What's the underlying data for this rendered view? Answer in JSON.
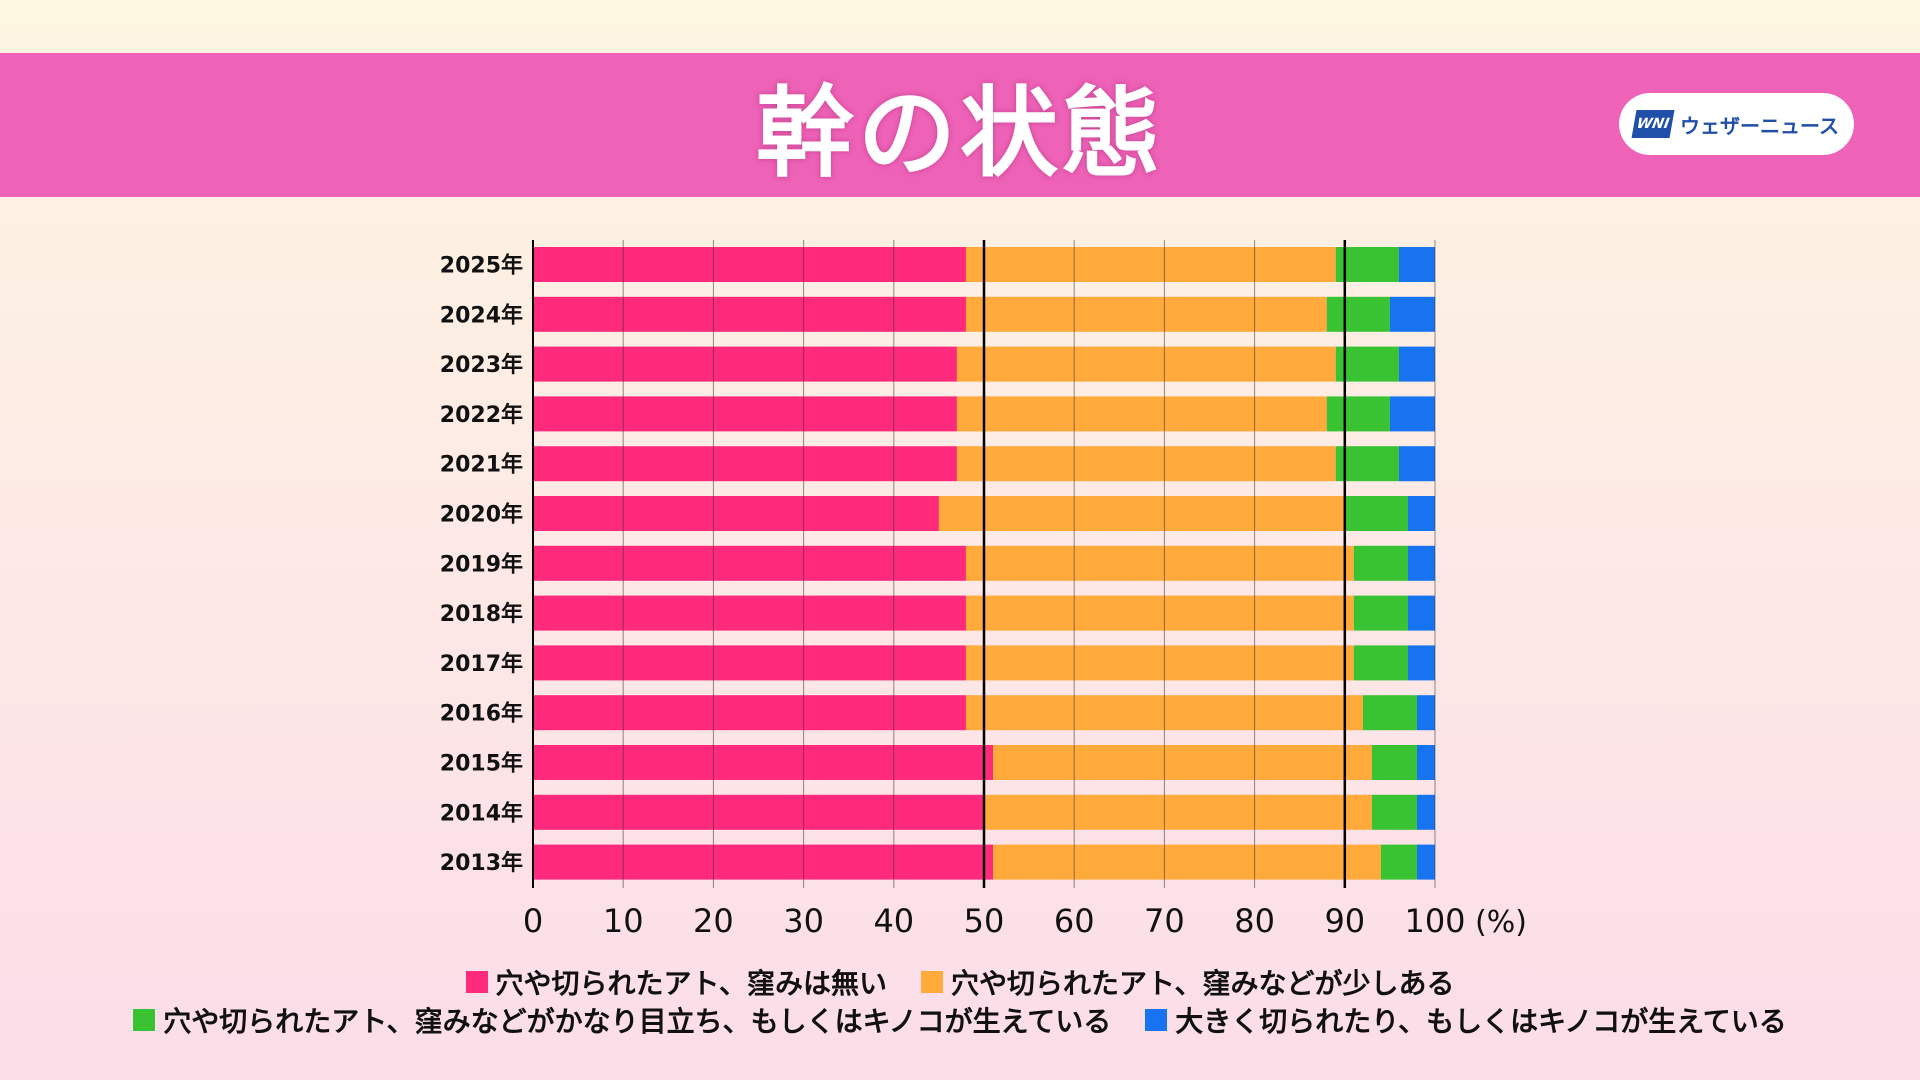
{
  "header": {
    "title": "幹の状態"
  },
  "brand": {
    "logo_text": "WNI",
    "name": "ウェザーニュース"
  },
  "chart_data": {
    "type": "bar",
    "orientation": "horizontal",
    "stacked": true,
    "title": "幹の状態",
    "xlabel": "(%)",
    "ylabel": "",
    "xlim": [
      0,
      100
    ],
    "xticks": [
      "0",
      "10",
      "20",
      "30",
      "40",
      "50",
      "60",
      "70",
      "80",
      "90",
      "100"
    ],
    "grid": true,
    "reference_lines": [
      50,
      90
    ],
    "legend_position": "bottom",
    "categories": [
      "2025年",
      "2024年",
      "2023年",
      "2022年",
      "2021年",
      "2020年",
      "2019年",
      "2018年",
      "2017年",
      "2016年",
      "2015年",
      "2014年",
      "2013年"
    ],
    "series": [
      {
        "name": "穴や切られたアト、窪みは無い",
        "color": "#ff2a7b",
        "values": [
          48,
          48,
          47,
          47,
          47,
          45,
          48,
          48,
          48,
          48,
          51,
          50,
          51
        ]
      },
      {
        "name": "穴や切られたアト、窪みなどが少しある",
        "color": "#ffaa3a",
        "values": [
          41,
          40,
          42,
          41,
          42,
          45,
          43,
          43,
          43,
          44,
          42,
          43,
          43
        ]
      },
      {
        "name": "穴や切られたアト、窪みなどがかなり目立ち、もしくはキノコが生えている",
        "color": "#39c232",
        "values": [
          7,
          7,
          7,
          7,
          7,
          7,
          6,
          6,
          6,
          6,
          5,
          5,
          4
        ]
      },
      {
        "name": "大きく切られたり、もしくはキノコが生えている",
        "color": "#1773f0",
        "values": [
          4,
          5,
          4,
          5,
          4,
          3,
          3,
          3,
          3,
          2,
          2,
          2,
          2
        ]
      }
    ]
  }
}
